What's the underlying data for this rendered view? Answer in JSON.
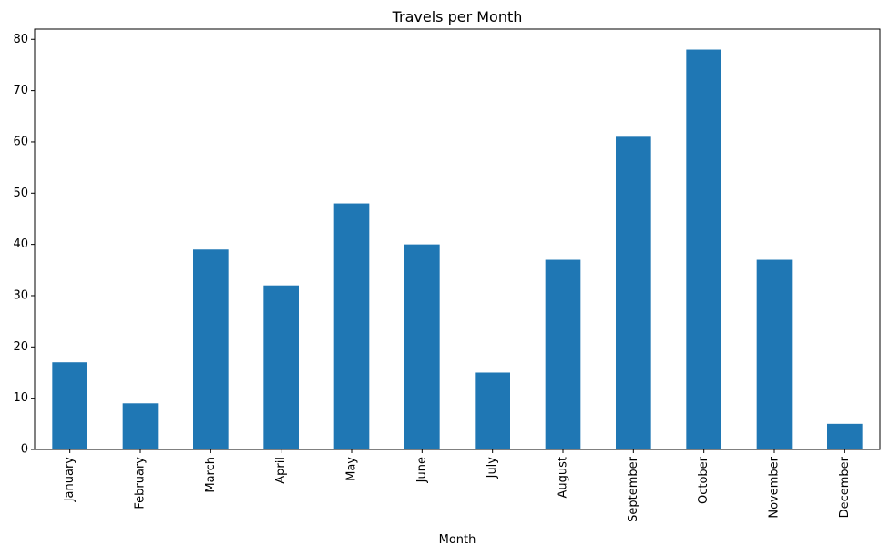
{
  "chart_data": {
    "type": "bar",
    "title": "Travels per Month",
    "xlabel": "Month",
    "ylabel": "",
    "categories": [
      "January",
      "February",
      "March",
      "April",
      "May",
      "June",
      "July",
      "August",
      "September",
      "October",
      "November",
      "December"
    ],
    "values": [
      17,
      9,
      39,
      32,
      48,
      40,
      15,
      37,
      61,
      78,
      37,
      5
    ],
    "ylim": [
      0,
      82
    ],
    "yticks": [
      0,
      10,
      20,
      30,
      40,
      50,
      60,
      70,
      80
    ],
    "bar_color": "#1f77b4",
    "grid": false,
    "legend": false
  }
}
